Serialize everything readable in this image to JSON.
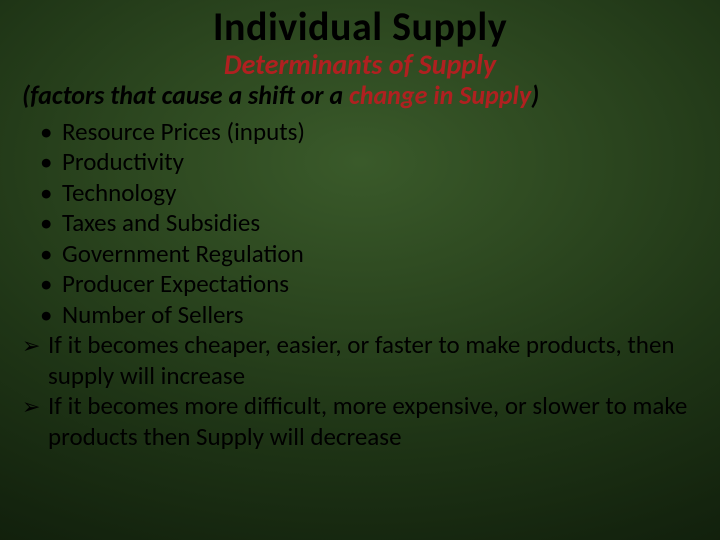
{
  "colors": {
    "accent": "#b02020",
    "text": "#000000",
    "bg_center": "#3a5a2a",
    "bg_edge": "#0a1607"
  },
  "title": "Individual Supply",
  "subtitle": "Determinants of Supply",
  "subline_prefix": "(factors that cause a shift or a ",
  "subline_accent": "change in Supply",
  "subline_suffix": ")",
  "bullets": [
    "Resource Prices (inputs)",
    "Productivity",
    "Technology",
    "Taxes and Subsidies",
    "Government Regulation",
    "Producer Expectations",
    "Number of Sellers"
  ],
  "arrows": [
    "If it becomes cheaper, easier, or faster to make products, then supply will increase",
    "If it becomes more difficult, more expensive, or slower to make products then Supply will decrease"
  ]
}
